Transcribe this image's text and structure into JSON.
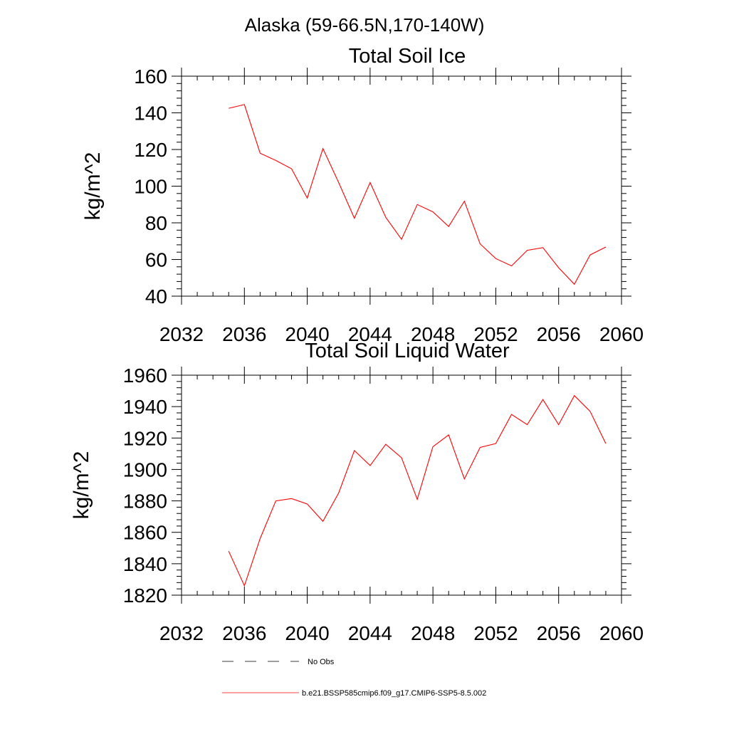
{
  "figure_title": "Alaska (59-66.5N,170-140W)",
  "colors": {
    "model": "#ff0000",
    "obs": "#000000",
    "axes": "#000000"
  },
  "legend": {
    "obs_label": "No Obs",
    "model_label": "b.e21.BSSP585cmip6.f09_g17.CMIP6-SSP5-8.5.002"
  },
  "chart_data": [
    {
      "type": "line",
      "title": "Total Soil Ice",
      "ylabel": "kg/m^2",
      "xlabel": "",
      "xlim": [
        2032,
        2060
      ],
      "ylim": [
        40,
        160
      ],
      "xticks": [
        2032,
        2036,
        2040,
        2044,
        2048,
        2052,
        2056,
        2060
      ],
      "yticks": [
        40,
        60,
        80,
        100,
        120,
        140,
        160
      ],
      "grid": false,
      "x": [
        2035,
        2036,
        2037,
        2038,
        2039,
        2040,
        2041,
        2042,
        2043,
        2044,
        2045,
        2046,
        2047,
        2048,
        2049,
        2050,
        2051,
        2052,
        2053,
        2054,
        2055,
        2056,
        2057,
        2058,
        2059
      ],
      "series": [
        {
          "values": [
            142.5,
            144.5,
            118,
            114,
            109.5,
            93.5,
            120.5,
            102,
            82.5,
            102,
            83,
            71,
            90,
            86,
            78,
            91.8,
            68.5,
            60.5,
            56.5,
            65,
            66.5,
            55.5,
            46.5,
            62.5,
            66.8
          ]
        }
      ]
    },
    {
      "type": "line",
      "title": "Total Soil Liquid Water",
      "ylabel": "kg/m^2",
      "xlabel": "",
      "xlim": [
        2032,
        2060
      ],
      "ylim": [
        1820,
        1960
      ],
      "xticks": [
        2032,
        2036,
        2040,
        2044,
        2048,
        2052,
        2056,
        2060
      ],
      "yticks": [
        1820,
        1840,
        1860,
        1880,
        1900,
        1920,
        1940,
        1960
      ],
      "grid": false,
      "x": [
        2035,
        2036,
        2037,
        2038,
        2039,
        2040,
        2041,
        2042,
        2043,
        2044,
        2045,
        2046,
        2047,
        2048,
        2049,
        2050,
        2051,
        2052,
        2053,
        2054,
        2055,
        2056,
        2057,
        2058,
        2059
      ],
      "series": [
        {
          "values": [
            1848,
            1826,
            1856,
            1880,
            1881.5,
            1878,
            1867,
            1885,
            1912,
            1902.5,
            1916,
            1907.5,
            1881,
            1914.5,
            1922,
            1894,
            1914,
            1916.5,
            1935,
            1928.5,
            1944.5,
            1928.5,
            1947,
            1937,
            1916.5
          ]
        }
      ]
    }
  ]
}
